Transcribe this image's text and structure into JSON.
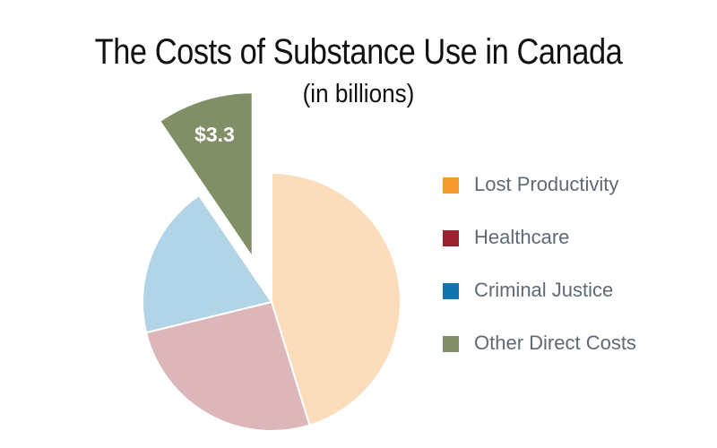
{
  "title": "The Costs of Substance Use in Canada",
  "subtitle": "(in billions)",
  "chart_data": {
    "type": "pie",
    "title": "The Costs of Substance Use in Canada",
    "subtitle": "(in billions)",
    "slices": [
      {
        "name": "Lost Productivity",
        "value": 15.7,
        "color": "#fbddbb",
        "legend_color": "#f79a2e"
      },
      {
        "name": "Healthcare",
        "value": 9.0,
        "color": "#dcb6b8",
        "legend_color": "#9b2230"
      },
      {
        "name": "Criminal Justice",
        "value": 6.7,
        "color": "#b1d4e6",
        "legend_color": "#0f76ad"
      },
      {
        "name": "Other Direct Costs",
        "value": 3.3,
        "color": "#818f67",
        "legend_color": "#818f67",
        "label": "$3.3",
        "exploded": true
      }
    ],
    "legend_position": "right"
  }
}
